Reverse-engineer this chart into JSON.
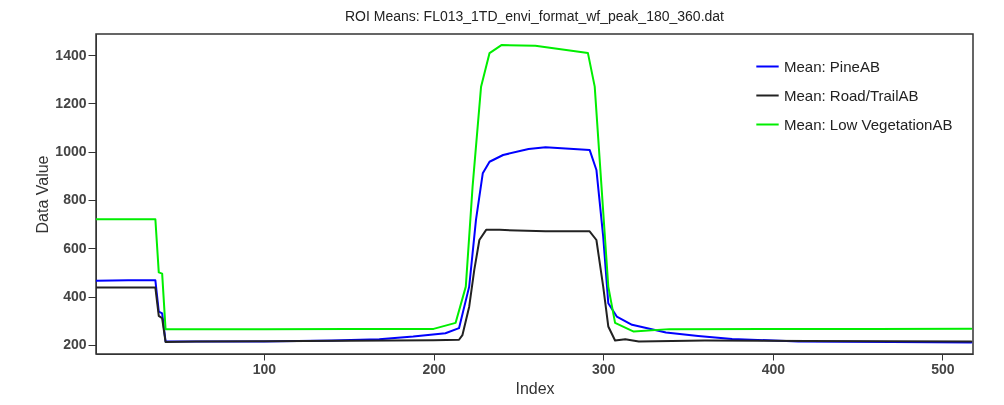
{
  "chart_data": {
    "type": "line",
    "title": "ROI Means: FL013_1TD_envi_format_wf_peak_180_360.dat",
    "xlabel": "Index",
    "ylabel": "Data Value",
    "xlim": [
      1,
      518
    ],
    "ylim": [
      162,
      1487
    ],
    "xticks": [
      100,
      200,
      300,
      400,
      500
    ],
    "yticks": [
      200,
      400,
      600,
      800,
      1000,
      1200,
      1400
    ],
    "grid": false,
    "legend": "top right",
    "line_style": "solid",
    "series": [
      {
        "name": "Mean: PineAB",
        "color": "#0000ff",
        "x": [
          1,
          20,
          36,
          38,
          40,
          42,
          60,
          100,
          140,
          168,
          188,
          207,
          215,
          221,
          225,
          229,
          233,
          241,
          256,
          266,
          292,
          296,
          300,
          303,
          308,
          317,
          337,
          356,
          376,
          415,
          470,
          517
        ],
        "values": [
          465,
          467,
          467,
          338,
          330,
          214,
          214,
          214,
          218,
          223,
          234,
          248,
          269,
          441,
          717,
          910,
          958,
          986,
          1011,
          1018,
          1007,
          924,
          648,
          372,
          317,
          283,
          251,
          237,
          224,
          214,
          212,
          210
        ]
      },
      {
        "name": "Mean: Road/TrailAB",
        "color": "#222222",
        "x": [
          1,
          20,
          36,
          38,
          40,
          42,
          60,
          100,
          150,
          200,
          215,
          217,
          221,
          224,
          227,
          231,
          239,
          266,
          292,
          296,
          300,
          303,
          307,
          313,
          321,
          360,
          420,
          517
        ],
        "values": [
          437,
          437,
          437,
          320,
          310,
          212,
          214,
          215,
          217,
          219,
          221,
          240,
          358,
          510,
          634,
          676,
          676,
          670,
          670,
          634,
          441,
          276,
          218,
          223,
          214,
          218,
          216,
          214
        ]
      },
      {
        "name": "Mean: Low VegetationAB",
        "color": "#00ee00",
        "x": [
          1,
          20,
          36,
          38,
          40,
          42,
          60,
          100,
          150,
          200,
          213,
          219,
          223,
          228,
          233,
          240,
          260,
          291,
          295,
          299,
          303,
          307,
          318,
          339,
          400,
          460,
          517
        ],
        "values": [
          720,
          720,
          720,
          500,
          495,
          265,
          265,
          265,
          266,
          266,
          291,
          441,
          855,
          1269,
          1408,
          1441,
          1438,
          1408,
          1269,
          855,
          441,
          291,
          255,
          265,
          266,
          266,
          267
        ]
      }
    ]
  }
}
